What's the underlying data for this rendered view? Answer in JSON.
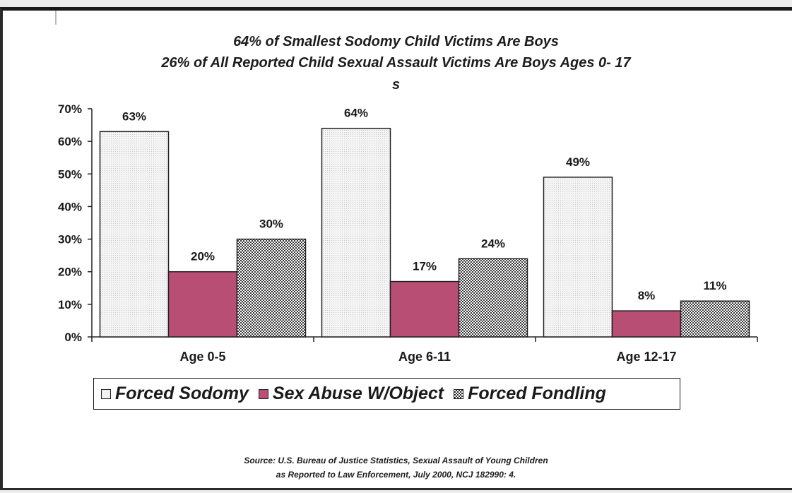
{
  "chart_data": {
    "type": "bar",
    "title": [
      "64% of Smallest Sodomy Child Victims Are Boys",
      "26% of All Reported Child Sexual Assault Victims Are Boys Ages 0- 17",
      "s"
    ],
    "categories": [
      "Age 0-5",
      "Age 6-11",
      "Age 12-17"
    ],
    "series": [
      {
        "name": "Forced Sodomy",
        "values": [
          63,
          64,
          49
        ],
        "labels": [
          "63%",
          "64%",
          "49%"
        ],
        "color": "#eeeeee",
        "pattern": "light-dots"
      },
      {
        "name": "Sex Abuse W/Object",
        "values": [
          20,
          17,
          8
        ],
        "labels": [
          "20%",
          "17%",
          "8%"
        ],
        "color": "#b84e73",
        "pattern": "solid"
      },
      {
        "name": "Forced Fondling",
        "values": [
          30,
          24,
          11
        ],
        "labels": [
          "30%",
          "24%",
          "11%"
        ],
        "color": "#555555",
        "pattern": "checker"
      }
    ],
    "yticks": [
      "0%",
      "10%",
      "20%",
      "30%",
      "40%",
      "50%",
      "60%",
      "70%"
    ],
    "ylim": [
      0,
      70
    ],
    "grid": false,
    "legend": "bottom",
    "xlabel": "",
    "ylabel": ""
  },
  "source": {
    "line1": "Source: U.S. Bureau of Justice Statistics, Sexual Assault of Young Children",
    "line2": "as Reported to Law Enforcement, July 2000, NCJ 182990: 4."
  }
}
